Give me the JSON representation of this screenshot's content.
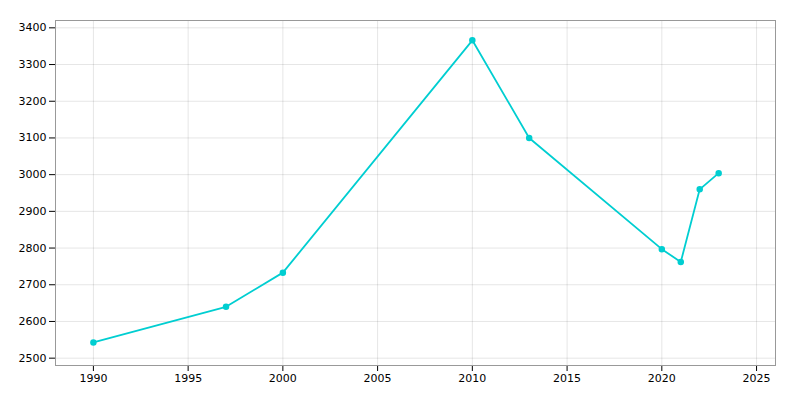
{
  "chart_data": {
    "type": "line",
    "x": [
      1990,
      1997,
      2000,
      2010,
      2013,
      2020,
      2021,
      2022,
      2023
    ],
    "values": [
      2543,
      2640,
      2733,
      3366,
      3100,
      2797,
      2762,
      2960,
      3004
    ],
    "color": "#00CED1",
    "marker": "circle",
    "xlim": [
      1988,
      2026
    ],
    "ylim": [
      2480,
      3420
    ],
    "xticks": [
      1990,
      1995,
      2000,
      2005,
      2010,
      2015,
      2020,
      2025
    ],
    "yticks": [
      2500,
      2600,
      2700,
      2800,
      2900,
      3000,
      3100,
      3200,
      3300,
      3400
    ],
    "grid": true
  }
}
